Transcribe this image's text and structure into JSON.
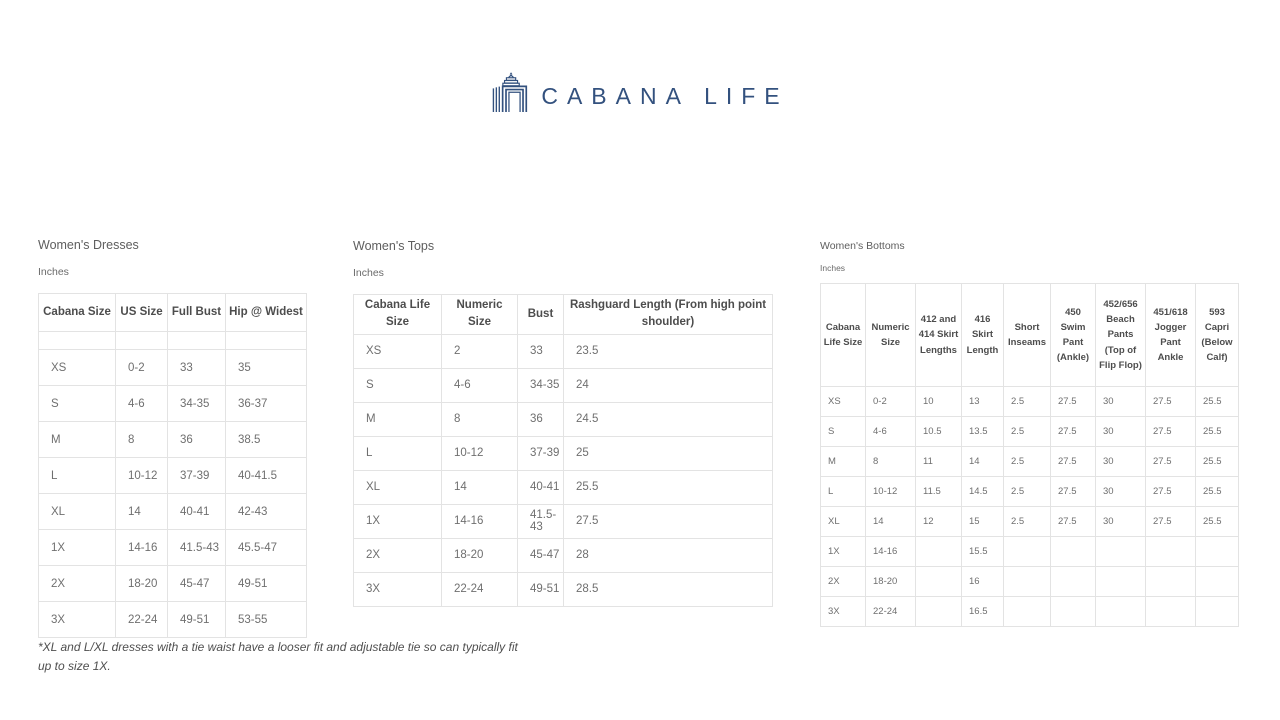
{
  "logo": {
    "text": "CABANA LIFE",
    "color": "#33517e",
    "icon": "cabana-icon"
  },
  "sections": [
    {
      "title": "Women's Dresses",
      "unit": "Inches",
      "columns": [
        "Cabana Size",
        "US Size",
        "Full Bust",
        "Hip @ Widest"
      ],
      "has_spacer_row": true,
      "rows": [
        [
          "XS",
          "0-2",
          "33",
          "35"
        ],
        [
          "S",
          "4-6",
          "34-35",
          "36-37"
        ],
        [
          "M",
          "8",
          "36",
          "38.5"
        ],
        [
          "L",
          "10-12",
          "37-39",
          "40-41.5"
        ],
        [
          "XL",
          "14",
          "40-41",
          "42-43"
        ],
        [
          "1X",
          "14-16",
          "41.5-43",
          "45.5-47"
        ],
        [
          "2X",
          "18-20",
          "45-47",
          "49-51"
        ],
        [
          "3X",
          "22-24",
          "49-51",
          "53-55"
        ]
      ],
      "footnote": "*XL and L/XL dresses with a tie waist have a looser fit and adjustable tie so can typically fit up to size 1X."
    },
    {
      "title": "Women's Tops",
      "unit": "Inches",
      "columns": [
        "Cabana Life Size",
        "Numeric Size",
        "Bust",
        "Rashguard Length (From high point shoulder)"
      ],
      "has_spacer_row": false,
      "rows": [
        [
          "XS",
          "2",
          "33",
          "23.5"
        ],
        [
          "S",
          "4-6",
          "34-35",
          "24"
        ],
        [
          "M",
          "8",
          "36",
          "24.5"
        ],
        [
          "L",
          "10-12",
          "37-39",
          "25"
        ],
        [
          "XL",
          "14",
          "40-41",
          "25.5"
        ],
        [
          "1X",
          "14-16",
          "41.5-43",
          "27.5"
        ],
        [
          "2X",
          "18-20",
          "45-47",
          "28"
        ],
        [
          "3X",
          "22-24",
          "49-51",
          "28.5"
        ]
      ]
    },
    {
      "title": "Women's Bottoms",
      "unit": "Inches",
      "columns": [
        "Cabana Life Size",
        "Numeric Size",
        "412 and 414 Skirt Lengths",
        "416 Skirt Length",
        "Short Inseams",
        "450 Swim Pant (Ankle)",
        "452/656 Beach Pants (Top of Flip Flop)",
        "451/618 Jogger Pant Ankle",
        "593 Capri (Below Calf)"
      ],
      "has_spacer_row": false,
      "rows": [
        [
          "XS",
          "0-2",
          "10",
          "13",
          "2.5",
          "27.5",
          "30",
          "27.5",
          "25.5"
        ],
        [
          "S",
          "4-6",
          "10.5",
          "13.5",
          "2.5",
          "27.5",
          "30",
          "27.5",
          "25.5"
        ],
        [
          "M",
          "8",
          "11",
          "14",
          "2.5",
          "27.5",
          "30",
          "27.5",
          "25.5"
        ],
        [
          "L",
          "10-12",
          "11.5",
          "14.5",
          "2.5",
          "27.5",
          "30",
          "27.5",
          "25.5"
        ],
        [
          "XL",
          "14",
          "12",
          "15",
          "2.5",
          "27.5",
          "30",
          "27.5",
          "25.5"
        ],
        [
          "1X",
          "14-16",
          "",
          "15.5",
          "",
          "",
          "",
          "",
          ""
        ],
        [
          "2X",
          "18-20",
          "",
          "16",
          "",
          "",
          "",
          "",
          ""
        ],
        [
          "3X",
          "22-24",
          "",
          "16.5",
          "",
          "",
          "",
          "",
          ""
        ]
      ]
    }
  ]
}
